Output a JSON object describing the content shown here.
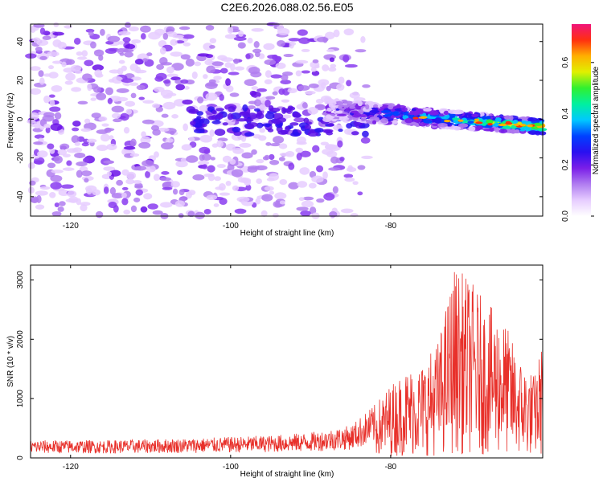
{
  "title": "C2E6.2026.088.02.56.E05",
  "colorbar": {
    "label": "Normalized spectral amplitude",
    "ticks": [
      0.0,
      0.2,
      0.4,
      0.6
    ],
    "tick_labels": [
      "0.0",
      "0.2",
      "0.4",
      "0.6"
    ],
    "range": [
      0,
      0.75
    ],
    "colors": [
      "#ffffff",
      "#e6ccff",
      "#b07cf0",
      "#7a1ee8",
      "#2a10f0",
      "#0040ff",
      "#00c8ff",
      "#00f0a0",
      "#30f030",
      "#e0f000",
      "#ffb000",
      "#ff3010",
      "#f0147a"
    ]
  },
  "chart_data": [
    {
      "type": "heatmap",
      "name": "spectrogram",
      "xlabel": "Height of straight line (km)",
      "ylabel": "Frequency (Hz)",
      "xlim": [
        -125,
        -61
      ],
      "ylim": [
        -50,
        49
      ],
      "xticks": [
        -120,
        -100,
        -80
      ],
      "xtick_labels": [
        "-120",
        "-100",
        "-80"
      ],
      "yticks": [
        -40,
        -20,
        0,
        20,
        40
      ],
      "ytick_labels": [
        "-40",
        "-20",
        "0",
        "20",
        "40"
      ],
      "signal_band": {
        "x_start": -88,
        "x_end": -61,
        "freq_start": 5,
        "freq_end": -4,
        "peak_amplitude": 0.75
      },
      "noise_region": {
        "x_start": -125,
        "x_end": -84,
        "amplitude": 0.2
      }
    },
    {
      "type": "line",
      "name": "snr",
      "xlabel": "Height of straight line (km)",
      "ylabel": "SNR (10 * v/v)",
      "xlim": [
        -125,
        -61
      ],
      "ylim": [
        0,
        3250
      ],
      "xticks": [
        -120,
        -100,
        -80
      ],
      "xtick_labels": [
        "-120",
        "-100",
        "-80"
      ],
      "yticks": [
        0,
        1000,
        2000,
        3000
      ],
      "ytick_labels": [
        "0",
        "1000",
        "2000",
        "3000"
      ],
      "color": "#e8302a",
      "series": [
        {
          "name": "SNR envelope",
          "x": [
            -125,
            -115,
            -105,
            -95,
            -90,
            -85,
            -82,
            -80,
            -78,
            -76,
            -74,
            -72,
            -70,
            -68,
            -66,
            -64,
            -62,
            -61
          ],
          "values": [
            300,
            300,
            330,
            380,
            430,
            550,
            900,
            1250,
            1500,
            1600,
            2000,
            3250,
            3000,
            2600,
            2400,
            1700,
            1400,
            2000
          ]
        }
      ]
    }
  ]
}
